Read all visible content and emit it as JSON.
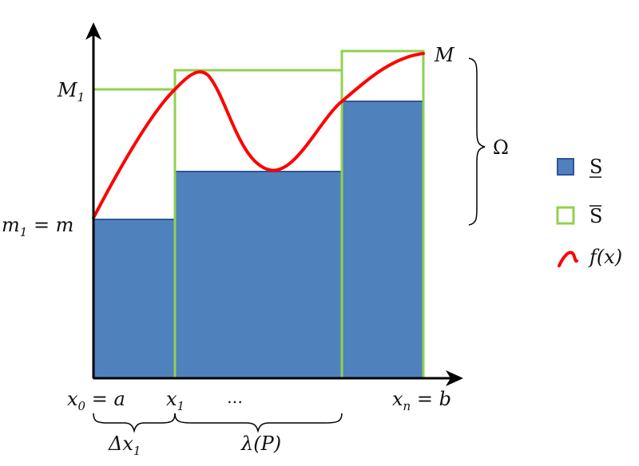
{
  "colors": {
    "lower_fill": "#4f81bd",
    "lower_stroke": "#2f5597",
    "upper_stroke": "#92d050",
    "curve": "#ff0000",
    "axis": "#000000",
    "brace": "#000000"
  },
  "labels": {
    "M1_main": "M",
    "M1_sub": "1",
    "m1_main": "m",
    "m1_sub": "1",
    "m1_rest": " = m",
    "M": "M",
    "omega": "Ω",
    "x0_main": "x",
    "x0_sub": "0",
    "x0_rest": " = a",
    "x1_main": "x",
    "x1_sub": "1",
    "dots": "…",
    "xn_main": "x",
    "xn_sub": "n",
    "xn_rest": " = b",
    "dx_delta": "Δx",
    "dx_sub": "1",
    "lambda": "λ(P)"
  },
  "legend": {
    "lower_symbol": "S",
    "upper_symbol": "S",
    "curve_label": "f(x)"
  }
}
